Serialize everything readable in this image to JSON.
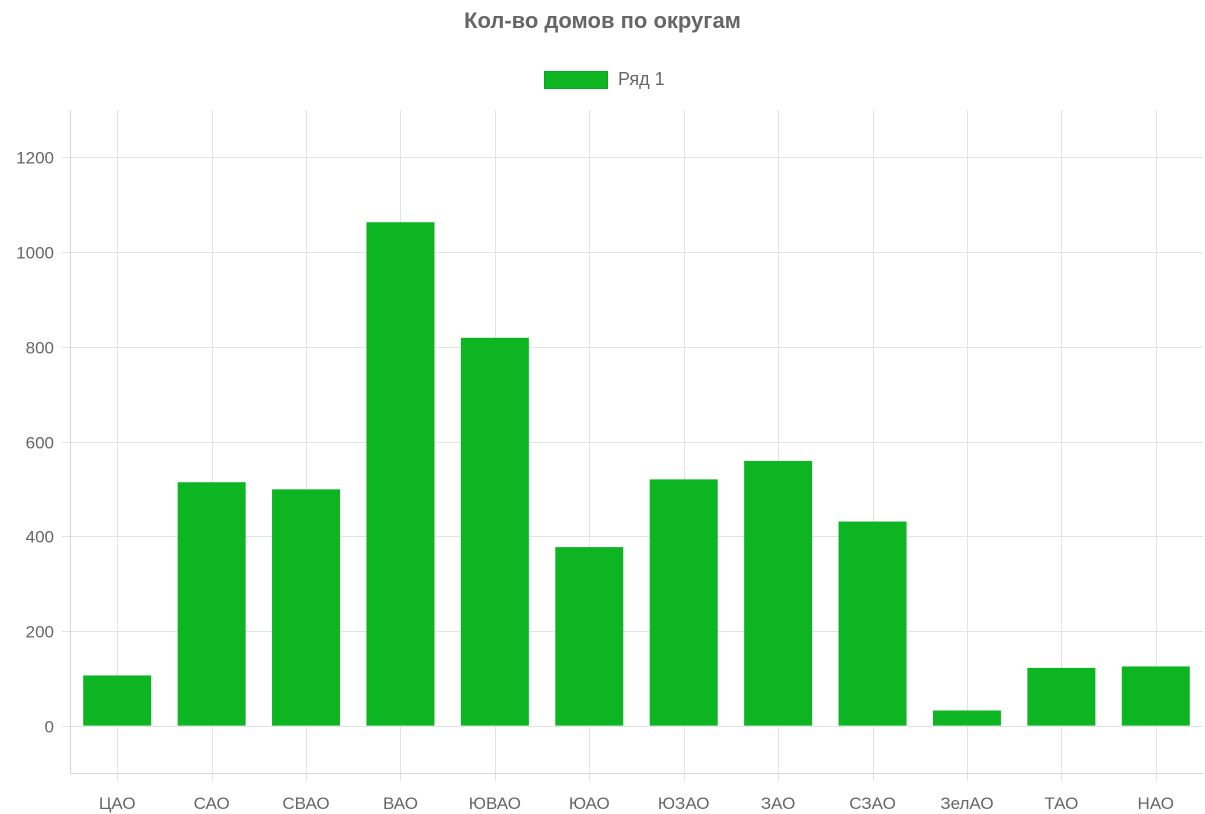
{
  "chart_data": {
    "type": "bar",
    "title": "Кол-во домов по округам",
    "xlabel": "",
    "ylabel": "",
    "categories": [
      "ЦАО",
      "САО",
      "СВАО",
      "ВАО",
      "ЮВАО",
      "ЮАО",
      "ЮЗАО",
      "ЗАО",
      "СЗАО",
      "ЗелАО",
      "ТАО",
      "НАО"
    ],
    "series": [
      {
        "name": "Ряд 1",
        "values": [
          106,
          514,
          499,
          1063,
          819,
          377,
          520,
          559,
          431,
          32,
          122,
          125
        ]
      }
    ],
    "ylim": [
      -100,
      1300
    ],
    "yticks": [
      0,
      200,
      400,
      600,
      800,
      1000,
      1200
    ],
    "grid": true,
    "legend_placement": "top-center",
    "colors": {
      "bar": "#0db523",
      "grid": "#e3e3e3",
      "text": "#666666"
    }
  }
}
